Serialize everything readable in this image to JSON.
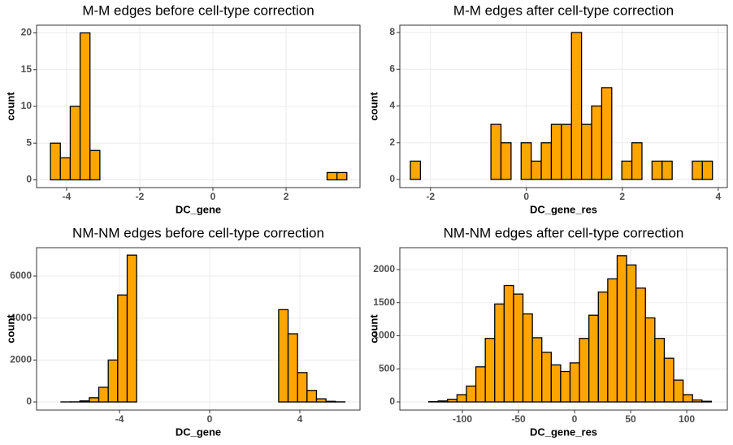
{
  "chart_data": [
    {
      "type": "histogram",
      "title": "M-M edges before cell-type correction",
      "xlabel": "DC_gene",
      "ylabel": "count",
      "color": "#FFA500",
      "grid": true,
      "bins": [
        -4.44,
        -4.17,
        -3.9,
        -3.63,
        -3.36,
        -3.09,
        -2.82,
        -2.55,
        -2.28,
        -2.01,
        -1.74,
        -1.47,
        -1.2,
        -0.93,
        -0.66,
        -0.39,
        -0.12,
        0.15,
        0.42,
        0.69,
        0.96,
        1.23,
        1.5,
        1.77,
        2.04,
        2.31,
        2.58,
        2.85,
        3.12,
        3.39,
        3.66
      ],
      "values": [
        5,
        3,
        10,
        20,
        4,
        0,
        0,
        0,
        0,
        0,
        0,
        0,
        0,
        0,
        0,
        0,
        0,
        0,
        0,
        0,
        0,
        0,
        0,
        0,
        0,
        0,
        0,
        0,
        1,
        1
      ],
      "xlim": [
        -4.82,
        4.02
      ],
      "ylim": [
        -1.05,
        21.05
      ],
      "xticks": [
        -4,
        -2,
        0,
        2
      ],
      "yticks": [
        0,
        5,
        10,
        15,
        20
      ]
    },
    {
      "type": "histogram",
      "title": "M-M edges after cell-type correction",
      "xlabel": "DC_gene_res",
      "ylabel": "count",
      "color": "#FFA500",
      "grid": true,
      "bins": [
        -2.42,
        -2.21,
        -2.0,
        -1.79,
        -1.58,
        -1.37,
        -1.16,
        -0.95,
        -0.74,
        -0.53,
        -0.32,
        -0.11,
        0.1,
        0.31,
        0.52,
        0.73,
        0.94,
        1.15,
        1.36,
        1.57,
        1.78,
        1.99,
        2.2,
        2.41,
        2.62,
        2.83,
        3.04,
        3.25,
        3.46,
        3.67,
        3.88
      ],
      "values": [
        1,
        0,
        0,
        0,
        0,
        0,
        0,
        0,
        3,
        2,
        0,
        2,
        1,
        2,
        3,
        3,
        8,
        3,
        4,
        5,
        0,
        1,
        2,
        0,
        1,
        1,
        0,
        0,
        1,
        1
      ],
      "xlim": [
        -2.64,
        4.19
      ],
      "ylim": [
        -0.44,
        8.4
      ],
      "xticks": [
        -2,
        0,
        2,
        4
      ],
      "yticks": [
        0,
        2,
        4,
        6,
        8
      ]
    },
    {
      "type": "histogram",
      "title": "NM-NM edges before cell-type correction",
      "xlabel": "DC_gene",
      "ylabel": "count",
      "color": "#FFA500",
      "grid": true,
      "bins": [
        -6.6,
        -6.18,
        -5.76,
        -5.34,
        -4.92,
        -4.5,
        -4.08,
        -3.66,
        -3.24,
        -2.82,
        -2.4,
        -1.98,
        -1.56,
        -1.14,
        -0.72,
        -0.3,
        0.12,
        0.54,
        0.96,
        1.38,
        1.8,
        2.22,
        2.64,
        3.06,
        3.48,
        3.9,
        4.32,
        4.74,
        5.16,
        5.58,
        6.0
      ],
      "values": [
        2,
        5,
        50,
        200,
        700,
        2000,
        5100,
        7000,
        0,
        0,
        0,
        0,
        0,
        0,
        0,
        0,
        0,
        0,
        0,
        0,
        0,
        0,
        0,
        4400,
        3250,
        1400,
        550,
        150,
        30,
        5
      ],
      "xlim": [
        -7.68,
        6.67
      ],
      "ylim": [
        -387,
        7355
      ],
      "xticks": [
        -4,
        0,
        4
      ],
      "yticks": [
        0,
        2000,
        4000,
        6000
      ]
    },
    {
      "type": "histogram",
      "title": "NM-NM edges after cell-type correction",
      "xlabel": "DC_gene_res",
      "ylabel": "count",
      "color": "#FFA500",
      "grid": true,
      "bins": [
        -130,
        -121.6,
        -113.2,
        -104.8,
        -96.4,
        -88,
        -79.6,
        -71.2,
        -62.8,
        -54.4,
        -46,
        -37.6,
        -29.2,
        -20.8,
        -12.4,
        -4,
        4.4,
        12.8,
        21.2,
        29.6,
        38,
        46.4,
        54.8,
        63.2,
        71.6,
        80,
        88.4,
        96.8,
        105.2,
        113.6,
        122
      ],
      "values": [
        5,
        15,
        40,
        110,
        240,
        530,
        960,
        1480,
        1760,
        1630,
        1330,
        970,
        750,
        560,
        460,
        590,
        960,
        1310,
        1660,
        1860,
        2210,
        2070,
        1720,
        1270,
        960,
        660,
        330,
        110,
        30,
        10
      ],
      "xlim": [
        -155.8,
        136.2
      ],
      "ylim": [
        -123,
        2331
      ],
      "xticks": [
        -100,
        -50,
        0,
        50,
        100
      ],
      "yticks": [
        0,
        500,
        1000,
        1500,
        2000
      ]
    }
  ]
}
